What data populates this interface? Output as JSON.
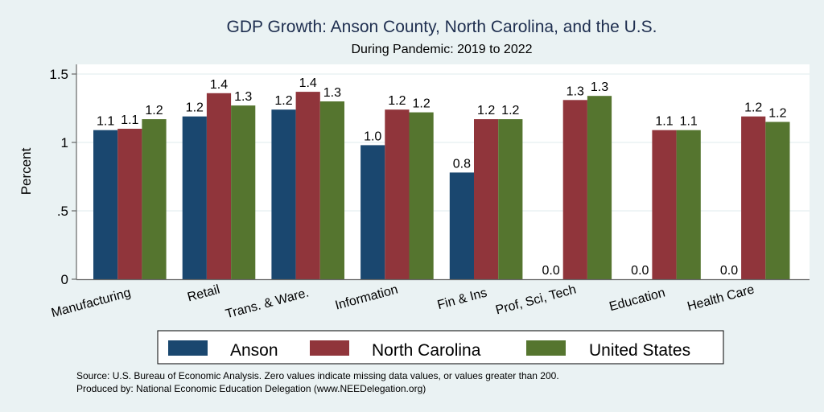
{
  "chart_data": {
    "type": "bar",
    "title": "GDP Growth: Anson County, North Carolina, and the U.S.",
    "subtitle": "During Pandemic: 2019 to 2022",
    "xlabel": "",
    "ylabel": "Percent",
    "ylim": [
      0,
      1.6
    ],
    "yticks": [
      {
        "value": 0,
        "label": "0"
      },
      {
        "value": 0.5,
        "label": ".5"
      },
      {
        "value": 1,
        "label": "1"
      },
      {
        "value": 1.5,
        "label": "1.5"
      }
    ],
    "grid": true,
    "legend_position": "bottom",
    "categories": [
      "Manufacturing",
      "Retail",
      "Trans. & Ware.",
      "Information",
      "Fin & Ins",
      "Prof, Sci, Tech",
      "Education",
      "Health Care"
    ],
    "series": [
      {
        "name": "Anson",
        "color": "#1a476f",
        "values": [
          1.09,
          1.19,
          1.24,
          0.98,
          0.78,
          0.0,
          0.0,
          0.0
        ],
        "labels": [
          "1.1",
          "1.2",
          "1.2",
          "1.0",
          "0.8",
          "0.0",
          "0.0",
          "0.0"
        ]
      },
      {
        "name": "North Carolina",
        "color": "#90353b",
        "values": [
          1.1,
          1.36,
          1.37,
          1.24,
          1.17,
          1.31,
          1.09,
          1.19
        ],
        "labels": [
          "1.1",
          "1.4",
          "1.4",
          "1.2",
          "1.2",
          "1.3",
          "1.1",
          "1.2"
        ]
      },
      {
        "name": "United States",
        "color": "#55752f",
        "values": [
          1.17,
          1.27,
          1.3,
          1.22,
          1.17,
          1.34,
          1.09,
          1.15
        ],
        "labels": [
          "1.2",
          "1.3",
          "1.3",
          "1.2",
          "1.2",
          "1.3",
          "1.1",
          "1.2"
        ]
      }
    ],
    "notes": [
      "Source: U.S. Bureau of Economic Analysis. Zero values indicate missing data values, or values greater than 200.",
      "Produced by: National Economic Education Delegation (www.NEEDelegation.org)"
    ]
  }
}
